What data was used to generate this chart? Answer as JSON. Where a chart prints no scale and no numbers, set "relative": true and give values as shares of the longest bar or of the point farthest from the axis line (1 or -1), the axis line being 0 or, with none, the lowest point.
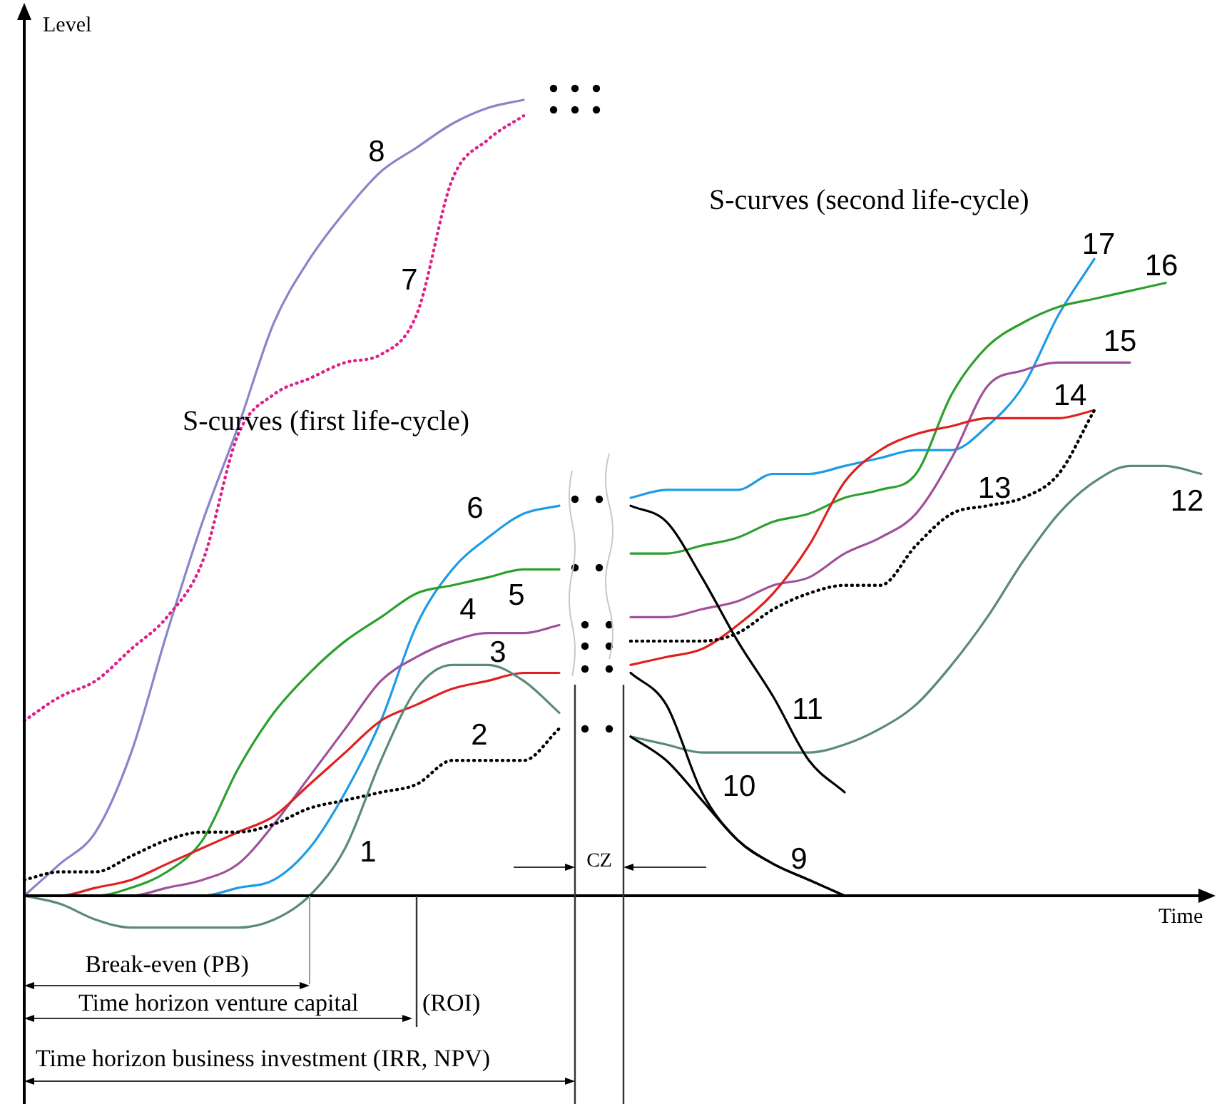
{
  "chart_data": {
    "type": "line",
    "xlabel": "Time",
    "ylabel": "Level",
    "relative": true,
    "legend": false,
    "tick_labels": false,
    "marker": "none",
    "annotations": [
      "S-curves (first life-cycle)",
      "S-curves (second life-cycle)",
      "CZ",
      "Break-even (PB)",
      "Time horizon venture capital",
      "(ROI)",
      "Time horizon business investment (IRR, NPV)"
    ],
    "categories": [
      null,
      null,
      null,
      null,
      null,
      null,
      null,
      null,
      null,
      null,
      null,
      null,
      null,
      null,
      null,
      null,
      null,
      null,
      null,
      null,
      null,
      null,
      null,
      null,
      null,
      null,
      null,
      null,
      null,
      null,
      null,
      null,
      null,
      null
    ],
    "series": [
      {
        "name": "1",
        "color": "#5a8a78",
        "line_style": "solid",
        "values": [
          0,
          -0.01,
          -0.03,
          -0.04,
          -0.04,
          -0.04,
          -0.04,
          -0.03,
          0,
          0.06,
          0.17,
          0.26,
          0.29,
          0.29,
          0.27,
          0.23,
          null,
          null,
          null,
          null,
          null,
          null,
          null,
          null,
          null,
          null,
          null,
          null,
          null,
          null,
          null,
          null,
          null,
          null
        ]
      },
      {
        "name": "2",
        "color": "#000000",
        "line_style": "dotted",
        "values": [
          0.02,
          0.03,
          0.03,
          0.05,
          0.07,
          0.08,
          0.08,
          0.09,
          0.11,
          0.12,
          0.13,
          0.14,
          0.17,
          0.17,
          0.17,
          0.21,
          null,
          null,
          null,
          null,
          null,
          null,
          null,
          null,
          null,
          null,
          null,
          null,
          null,
          null,
          null,
          null,
          null,
          null
        ]
      },
      {
        "name": "3",
        "color": "#e02020",
        "line_style": "solid",
        "values": [
          0,
          0,
          0.01,
          0.02,
          0.04,
          0.06,
          0.08,
          0.1,
          0.14,
          0.18,
          0.22,
          0.24,
          0.26,
          0.27,
          0.28,
          0.28,
          null,
          null,
          null,
          null,
          null,
          null,
          null,
          null,
          null,
          null,
          null,
          null,
          null,
          null,
          null,
          null,
          null,
          null
        ]
      },
      {
        "name": "4",
        "color": "#a0509a",
        "line_style": "solid",
        "values": [
          null,
          null,
          0,
          0,
          0.01,
          0.02,
          0.04,
          0.09,
          0.15,
          0.21,
          0.27,
          0.3,
          0.32,
          0.33,
          0.33,
          0.34,
          null,
          null,
          null,
          null,
          null,
          null,
          null,
          null,
          null,
          null,
          null,
          null,
          null,
          null,
          null,
          null,
          null,
          null
        ]
      },
      {
        "name": "5",
        "color": "#2ca02c",
        "line_style": "solid",
        "values": [
          0,
          0,
          0,
          0.01,
          0.03,
          0.07,
          0.16,
          0.23,
          0.28,
          0.32,
          0.35,
          0.38,
          0.39,
          0.4,
          0.41,
          0.41,
          null,
          null,
          null,
          null,
          null,
          null,
          null,
          null,
          null,
          null,
          null,
          null,
          null,
          null,
          null,
          null,
          null,
          null
        ]
      },
      {
        "name": "6",
        "color": "#1e9be6",
        "line_style": "solid",
        "values": [
          null,
          null,
          null,
          null,
          0,
          0,
          0.01,
          0.02,
          0.06,
          0.13,
          0.22,
          0.34,
          0.41,
          0.45,
          0.48,
          0.49,
          null,
          null,
          null,
          null,
          null,
          null,
          null,
          null,
          null,
          null,
          null,
          null,
          null,
          null,
          null,
          null,
          null,
          null
        ]
      },
      {
        "name": "7",
        "color": "#e0208a",
        "line_style": "dotted",
        "values": [
          0.22,
          0.25,
          0.27,
          0.31,
          0.35,
          0.42,
          0.58,
          0.63,
          0.65,
          0.67,
          0.68,
          0.73,
          0.9,
          0.95,
          0.98,
          null,
          null,
          null,
          null,
          null,
          null,
          null,
          null,
          null,
          null,
          null,
          null,
          null,
          null,
          null,
          null,
          null,
          null,
          null
        ]
      },
      {
        "name": "8",
        "color": "#8a84c8",
        "line_style": "solid",
        "values": [
          0,
          0.04,
          0.08,
          0.18,
          0.33,
          0.47,
          0.59,
          0.72,
          0.8,
          0.86,
          0.91,
          0.94,
          0.97,
          0.99,
          1,
          null,
          null,
          null,
          null,
          null,
          null,
          null,
          null,
          null,
          null,
          null,
          null,
          null,
          null,
          null,
          null,
          null,
          null,
          null
        ]
      },
      {
        "name": "9",
        "color": "#000000",
        "line_style": "solid",
        "values": [
          null,
          null,
          null,
          null,
          null,
          null,
          null,
          null,
          null,
          null,
          null,
          null,
          null,
          null,
          null,
          null,
          null,
          0.2,
          0.17,
          0.12,
          0.07,
          0.04,
          0.02,
          0,
          null,
          null,
          null,
          null,
          null,
          null,
          null,
          null,
          null,
          null
        ]
      },
      {
        "name": "10",
        "color": "#000000",
        "line_style": "solid",
        "values": [
          null,
          null,
          null,
          null,
          null,
          null,
          null,
          null,
          null,
          null,
          null,
          null,
          null,
          null,
          null,
          null,
          null,
          0.28,
          0.24,
          0.13,
          0.07,
          0.04,
          0.02,
          0,
          null,
          null,
          null,
          null,
          null,
          null,
          null,
          null,
          null,
          null
        ]
      },
      {
        "name": "11",
        "color": "#000000",
        "line_style": "solid",
        "values": [
          null,
          null,
          null,
          null,
          null,
          null,
          null,
          null,
          null,
          null,
          null,
          null,
          null,
          null,
          null,
          null,
          null,
          0.49,
          0.47,
          0.4,
          0.32,
          0.25,
          0.17,
          0.13,
          null,
          null,
          null,
          null,
          null,
          null,
          null,
          null,
          null,
          null
        ]
      },
      {
        "name": "12",
        "color": "#5a8a78",
        "line_style": "solid",
        "values": [
          null,
          null,
          null,
          null,
          null,
          null,
          null,
          null,
          null,
          null,
          null,
          null,
          null,
          null,
          null,
          null,
          null,
          0.2,
          0.19,
          0.18,
          0.18,
          0.18,
          0.18,
          0.19,
          0.21,
          0.24,
          0.29,
          0.35,
          0.42,
          0.48,
          0.52,
          0.54,
          0.54,
          0.53
        ]
      },
      {
        "name": "13",
        "color": "#000000",
        "line_style": "dotted",
        "values": [
          null,
          null,
          null,
          null,
          null,
          null,
          null,
          null,
          null,
          null,
          null,
          null,
          null,
          null,
          null,
          null,
          null,
          0.32,
          0.32,
          0.32,
          0.33,
          0.36,
          0.38,
          0.39,
          0.39,
          0.44,
          0.48,
          0.49,
          0.5,
          0.53,
          0.61,
          null,
          null,
          null
        ]
      },
      {
        "name": "14",
        "color": "#e02020",
        "line_style": "solid",
        "values": [
          null,
          null,
          null,
          null,
          null,
          null,
          null,
          null,
          null,
          null,
          null,
          null,
          null,
          null,
          null,
          null,
          null,
          0.29,
          0.3,
          0.31,
          0.34,
          0.38,
          0.44,
          0.52,
          0.56,
          0.58,
          0.59,
          0.6,
          0.6,
          0.6,
          0.61,
          null,
          null,
          null
        ]
      },
      {
        "name": "15",
        "color": "#a0509a",
        "line_style": "solid",
        "values": [
          null,
          null,
          null,
          null,
          null,
          null,
          null,
          null,
          null,
          null,
          null,
          null,
          null,
          null,
          null,
          null,
          null,
          0.35,
          0.35,
          0.36,
          0.37,
          0.39,
          0.4,
          0.43,
          0.45,
          0.48,
          0.55,
          0.64,
          0.66,
          0.67,
          0.67,
          0.67,
          null,
          null
        ]
      },
      {
        "name": "16",
        "color": "#2ca02c",
        "line_style": "solid",
        "values": [
          null,
          null,
          null,
          null,
          null,
          null,
          null,
          null,
          null,
          null,
          null,
          null,
          null,
          null,
          null,
          null,
          null,
          0.43,
          0.43,
          0.44,
          0.45,
          0.47,
          0.48,
          0.5,
          0.51,
          0.53,
          0.63,
          0.69,
          0.72,
          0.74,
          0.75,
          0.76,
          0.77,
          null
        ]
      },
      {
        "name": "17",
        "color": "#1e9be6",
        "line_style": "solid",
        "values": [
          null,
          null,
          null,
          null,
          null,
          null,
          null,
          null,
          null,
          null,
          null,
          null,
          null,
          null,
          null,
          null,
          null,
          0.5,
          0.51,
          0.51,
          0.51,
          0.53,
          0.53,
          0.54,
          0.55,
          0.56,
          0.56,
          0.59,
          0.64,
          0.73,
          0.8,
          null,
          null,
          null
        ]
      }
    ]
  }
}
